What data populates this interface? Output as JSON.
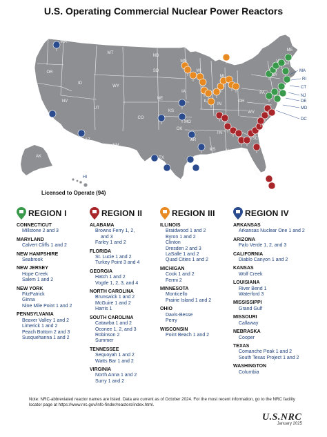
{
  "title": "U.S. Operating Commercial Nuclear Power Reactors",
  "legend": {
    "licensed_label": "Licensed to Operate (94)"
  },
  "colors": {
    "region1": "#3a9a4c",
    "region2": "#a8252a",
    "region3": "#e88a22",
    "region4": "#2a4b8e",
    "land": "#8d8f92"
  },
  "state_labels": {
    "WA": "WA",
    "OR": "OR",
    "CA": "CA",
    "NV": "NV",
    "ID": "ID",
    "MT": "MT",
    "WY": "WY",
    "UT": "UT",
    "CO": "CO",
    "AZ": "AZ",
    "NM": "NM",
    "ND": "ND",
    "SD": "SD",
    "NE": "NE",
    "KS": "KS",
    "OK": "OK",
    "TX": "TX",
    "MN": "MN",
    "IA": "IA",
    "MO": "MO",
    "AR": "AR",
    "LA": "LA",
    "WI": "WI",
    "IL": "IL",
    "MI": "MI",
    "IN": "IN",
    "OH": "OH",
    "KY": "KY",
    "TN": "TN",
    "MS": "MS",
    "AL": "AL",
    "GA": "GA",
    "FL": "FL",
    "SC": "SC",
    "NC": "NC",
    "VA": "VA",
    "WV": "WV",
    "PA": "PA",
    "NY": "NY",
    "VT": "VT",
    "NH": "NH",
    "ME": "ME",
    "MA": "MA",
    "RI": "RI",
    "CT": "CT",
    "NJ": "NJ",
    "DE": "DE",
    "MD": "MD",
    "DC": "DC",
    "AK": "AK",
    "HI": "HI"
  },
  "regions": [
    {
      "title": "REGION I",
      "color": "#3a9a4c",
      "states": [
        {
          "name": "CONNECTICUT",
          "reactors": [
            "Millstone 2 and 3"
          ]
        },
        {
          "name": "MARYLAND",
          "reactors": [
            "Calvert Cliffs 1 and 2"
          ]
        },
        {
          "name": "NEW HAMPSHIRE",
          "reactors": [
            "Seabrook"
          ]
        },
        {
          "name": "NEW JERSEY",
          "reactors": [
            "Hope Creek",
            "Salem 1 and 2"
          ]
        },
        {
          "name": "NEW YORK",
          "reactors": [
            "FitzPatrick",
            "Ginna",
            "Nine Mile Point 1 and 2"
          ]
        },
        {
          "name": "PENNSYLVANIA",
          "reactors": [
            "Beaver Valley 1 and 2",
            "Limerick 1 and 2",
            "Peach Bottom 2 and 3",
            "Susquehanna 1 and 2"
          ]
        }
      ]
    },
    {
      "title": "REGION II",
      "color": "#a8252a",
      "states": [
        {
          "name": "ALABAMA",
          "reactors": [
            "Browns Ferry 1, 2,",
            "and 3",
            "Farley 1 and 2"
          ]
        },
        {
          "name": "FLORIDA",
          "reactors": [
            "St. Lucie 1 and 2",
            "Turkey Point 3 and 4"
          ]
        },
        {
          "name": "GEORGIA",
          "reactors": [
            "Hatch 1 and 2",
            "Vogtle 1, 2, 3, and 4"
          ]
        },
        {
          "name": "NORTH CAROLINA",
          "reactors": [
            "Brunswick 1 and 2",
            "McGuire 1 and 2",
            "Harris 1"
          ]
        },
        {
          "name": "SOUTH CAROLINA",
          "reactors": [
            "Catawba 1 and 2",
            "Oconee 1, 2, and 3",
            "Robinson 2",
            "Summer"
          ]
        },
        {
          "name": "TENNESSEE",
          "reactors": [
            "Sequoyah 1 and 2",
            "Watts Bar 1 and 2"
          ]
        },
        {
          "name": "VIRGINIA",
          "reactors": [
            "North Anna 1 and 2",
            "Surry 1 and 2"
          ]
        }
      ]
    },
    {
      "title": "REGION III",
      "color": "#e88a22",
      "states": [
        {
          "name": "ILLINOIS",
          "reactors": [
            "Braidwood 1 and 2",
            "Byron 1 and 2",
            "Clinton",
            "Dresden 2 and 3",
            "LaSalle 1 and 2",
            "Quad Cities 1 and 2"
          ]
        },
        {
          "name": "MICHIGAN",
          "reactors": [
            "Cook 1 and 2",
            "Fermi 2"
          ]
        },
        {
          "name": "MINNESOTA",
          "reactors": [
            "Monticello",
            "Prairie Island 1 and 2"
          ]
        },
        {
          "name": "OHIO",
          "reactors": [
            "Davis-Besse",
            "Perry"
          ]
        },
        {
          "name": "WISCONSIN",
          "reactors": [
            "Point Beach 1 and 2"
          ]
        }
      ]
    },
    {
      "title": "REGION IV",
      "color": "#2a4b8e",
      "states": [
        {
          "name": "ARKANSAS",
          "reactors": [
            "Arkansas Nuclear One 1 and 2"
          ]
        },
        {
          "name": "ARIZONA",
          "reactors": [
            "Palo Verde 1, 2, and 3"
          ]
        },
        {
          "name": "CALIFORNIA",
          "reactors": [
            "Diablo Canyon 1 and 2"
          ]
        },
        {
          "name": "KANSAS",
          "reactors": [
            "Wolf Creek"
          ]
        },
        {
          "name": "LOUISIANA",
          "reactors": [
            "River Bend 1",
            "Waterford 3"
          ]
        },
        {
          "name": "MISSISSIPPI",
          "reactors": [
            "Grand Gulf"
          ]
        },
        {
          "name": "MISSOURI",
          "reactors": [
            "Callaway"
          ]
        },
        {
          "name": "NEBRASKA",
          "reactors": [
            "Cooper"
          ]
        },
        {
          "name": "TEXAS",
          "reactors": [
            "Comanche Peak 1 and 2",
            "South Texas Project 1 and 2"
          ]
        },
        {
          "name": "WASHINGTON",
          "reactors": [
            "Columbia"
          ]
        }
      ]
    }
  ],
  "note": "Note: NRC-abbreviated reactor names are listed. Data are current as of October 2024. For the most recent information, go to the NRC facility locator page at https://www.nrc.gov/info-finder/reactors/index.html.",
  "logo": {
    "name": "U.S.NRC",
    "date": "January 2025"
  }
}
